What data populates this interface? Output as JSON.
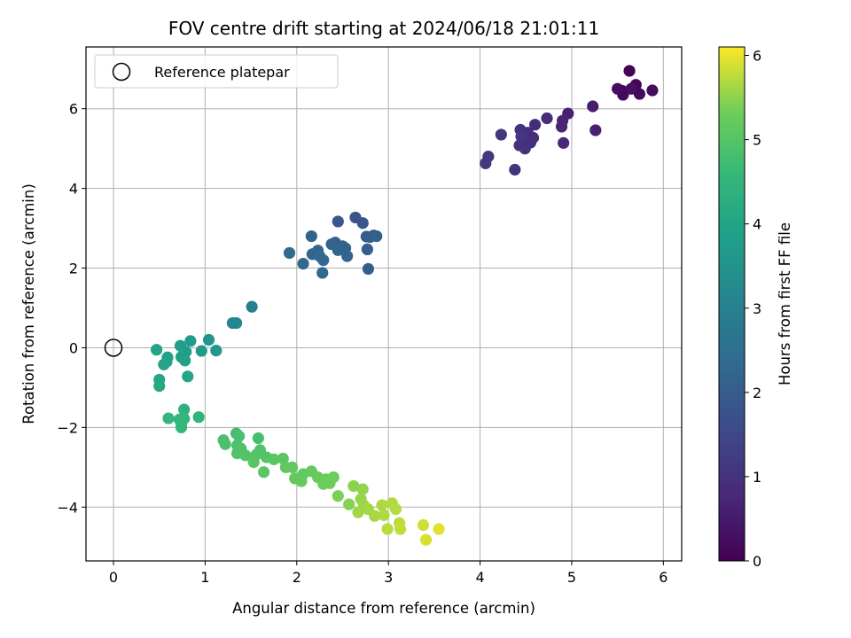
{
  "chart_data": {
    "type": "scatter",
    "title": "FOV centre drift starting at 2024/06/18 21:01:11",
    "xlabel": "Angular distance from reference (arcmin)",
    "ylabel": "Rotation from reference (arcmin)",
    "xlim": [
      -0.3,
      6.2
    ],
    "ylim": [
      -5.35,
      7.55
    ],
    "x_ticks": [
      0,
      1,
      2,
      3,
      4,
      5,
      6
    ],
    "y_ticks": [
      -4,
      -2,
      0,
      2,
      4,
      6
    ],
    "grid": true,
    "colormap": "viridis",
    "colorbar": {
      "label": "Hours from first FF file",
      "range": [
        0,
        6.1
      ],
      "ticks": [
        0,
        1,
        2,
        3,
        4,
        5,
        6
      ]
    },
    "legend": {
      "placement": "top-left",
      "entries": [
        "Reference platepar"
      ]
    },
    "reference_point": {
      "x": 0,
      "y": 0,
      "marker": "open-circle"
    },
    "series": [
      {
        "points": [
          {
            "x": 5.63,
            "y": 6.95,
            "h": 0.05
          },
          {
            "x": 5.7,
            "y": 6.6,
            "h": 0.1
          },
          {
            "x": 5.55,
            "y": 6.45,
            "h": 0.12
          },
          {
            "x": 5.56,
            "y": 6.35,
            "h": 0.15
          },
          {
            "x": 5.74,
            "y": 6.37,
            "h": 0.18
          },
          {
            "x": 5.88,
            "y": 6.46,
            "h": 0.22
          },
          {
            "x": 5.5,
            "y": 6.5,
            "h": 0.25
          },
          {
            "x": 5.65,
            "y": 6.5,
            "h": 0.3
          },
          {
            "x": 5.23,
            "y": 6.06,
            "h": 0.55
          },
          {
            "x": 5.26,
            "y": 5.46,
            "h": 0.6
          },
          {
            "x": 4.96,
            "y": 5.88,
            "h": 0.65
          },
          {
            "x": 4.9,
            "y": 5.7,
            "h": 0.7
          },
          {
            "x": 4.89,
            "y": 5.55,
            "h": 0.75
          },
          {
            "x": 4.91,
            "y": 5.14,
            "h": 0.8
          },
          {
            "x": 4.73,
            "y": 5.76,
            "h": 0.85
          },
          {
            "x": 4.6,
            "y": 5.6,
            "h": 0.88
          },
          {
            "x": 4.58,
            "y": 5.27,
            "h": 0.9
          },
          {
            "x": 4.52,
            "y": 5.4,
            "h": 0.92
          },
          {
            "x": 4.55,
            "y": 5.15,
            "h": 0.94
          },
          {
            "x": 4.48,
            "y": 5.2,
            "h": 0.96
          },
          {
            "x": 4.44,
            "y": 5.47,
            "h": 0.98
          },
          {
            "x": 4.43,
            "y": 5.08,
            "h": 1.0
          },
          {
            "x": 4.49,
            "y": 5.0,
            "h": 1.02
          },
          {
            "x": 4.38,
            "y": 4.47,
            "h": 1.05
          },
          {
            "x": 4.23,
            "y": 5.35,
            "h": 1.08
          },
          {
            "x": 4.09,
            "y": 4.8,
            "h": 1.1
          },
          {
            "x": 4.06,
            "y": 4.63,
            "h": 1.12
          },
          {
            "x": 4.45,
            "y": 5.3,
            "h": 1.14
          },
          {
            "x": 2.64,
            "y": 3.27,
            "h": 1.8
          },
          {
            "x": 2.72,
            "y": 3.13,
            "h": 1.85
          },
          {
            "x": 2.45,
            "y": 3.17,
            "h": 1.9
          },
          {
            "x": 2.84,
            "y": 2.82,
            "h": 1.95
          },
          {
            "x": 2.8,
            "y": 2.78,
            "h": 1.97
          },
          {
            "x": 2.76,
            "y": 2.79,
            "h": 2.0
          },
          {
            "x": 2.77,
            "y": 2.47,
            "h": 2.02
          },
          {
            "x": 2.78,
            "y": 1.98,
            "h": 2.05
          },
          {
            "x": 2.87,
            "y": 2.8,
            "h": 2.07
          },
          {
            "x": 2.42,
            "y": 2.64,
            "h": 2.1
          },
          {
            "x": 2.38,
            "y": 2.6,
            "h": 2.12
          },
          {
            "x": 2.5,
            "y": 2.55,
            "h": 2.14
          },
          {
            "x": 2.53,
            "y": 2.5,
            "h": 2.16
          },
          {
            "x": 2.45,
            "y": 2.45,
            "h": 2.18
          },
          {
            "x": 2.55,
            "y": 2.3,
            "h": 2.2
          },
          {
            "x": 2.16,
            "y": 2.8,
            "h": 2.22
          },
          {
            "x": 2.23,
            "y": 2.44,
            "h": 2.24
          },
          {
            "x": 2.17,
            "y": 2.35,
            "h": 2.26
          },
          {
            "x": 2.25,
            "y": 2.3,
            "h": 2.28
          },
          {
            "x": 2.29,
            "y": 2.2,
            "h": 2.3
          },
          {
            "x": 2.07,
            "y": 2.11,
            "h": 2.32
          },
          {
            "x": 2.28,
            "y": 1.88,
            "h": 2.35
          },
          {
            "x": 1.92,
            "y": 2.38,
            "h": 2.38
          },
          {
            "x": 1.51,
            "y": 1.03,
            "h": 3.0
          },
          {
            "x": 1.3,
            "y": 0.62,
            "h": 3.1
          },
          {
            "x": 1.34,
            "y": 0.62,
            "h": 3.15
          },
          {
            "x": 1.04,
            "y": 0.2,
            "h": 3.6
          },
          {
            "x": 1.12,
            "y": -0.07,
            "h": 3.65
          },
          {
            "x": 0.96,
            "y": -0.08,
            "h": 3.7
          },
          {
            "x": 0.84,
            "y": 0.17,
            "h": 3.75
          },
          {
            "x": 0.73,
            "y": 0.05,
            "h": 3.8
          },
          {
            "x": 0.79,
            "y": -0.1,
            "h": 3.85
          },
          {
            "x": 0.74,
            "y": -0.23,
            "h": 3.88
          },
          {
            "x": 0.78,
            "y": -0.32,
            "h": 3.9
          },
          {
            "x": 0.59,
            "y": -0.24,
            "h": 3.92
          },
          {
            "x": 0.58,
            "y": -0.35,
            "h": 3.95
          },
          {
            "x": 0.55,
            "y": -0.42,
            "h": 3.97
          },
          {
            "x": 0.47,
            "y": -0.05,
            "h": 4.0
          },
          {
            "x": 0.81,
            "y": -0.72,
            "h": 4.02
          },
          {
            "x": 0.5,
            "y": -0.8,
            "h": 4.05
          },
          {
            "x": 0.5,
            "y": -0.96,
            "h": 4.08
          },
          {
            "x": 0.77,
            "y": -1.55,
            "h": 4.4
          },
          {
            "x": 0.93,
            "y": -1.74,
            "h": 4.45
          },
          {
            "x": 0.6,
            "y": -1.77,
            "h": 4.5
          },
          {
            "x": 0.72,
            "y": -1.8,
            "h": 4.52
          },
          {
            "x": 0.77,
            "y": -1.78,
            "h": 4.54
          },
          {
            "x": 0.74,
            "y": -1.9,
            "h": 4.56
          },
          {
            "x": 0.74,
            "y": -2.0,
            "h": 4.58
          },
          {
            "x": 1.34,
            "y": -2.15,
            "h": 4.8
          },
          {
            "x": 1.58,
            "y": -2.27,
            "h": 4.82
          },
          {
            "x": 1.37,
            "y": -2.22,
            "h": 4.84
          },
          {
            "x": 1.2,
            "y": -2.32,
            "h": 4.86
          },
          {
            "x": 1.22,
            "y": -2.42,
            "h": 4.88
          },
          {
            "x": 1.35,
            "y": -2.45,
            "h": 4.9
          },
          {
            "x": 1.39,
            "y": -2.53,
            "h": 4.92
          },
          {
            "x": 1.6,
            "y": -2.57,
            "h": 4.94
          },
          {
            "x": 1.35,
            "y": -2.65,
            "h": 4.96
          },
          {
            "x": 1.44,
            "y": -2.7,
            "h": 4.98
          },
          {
            "x": 1.56,
            "y": -2.68,
            "h": 5.0
          },
          {
            "x": 1.67,
            "y": -2.75,
            "h": 5.02
          },
          {
            "x": 1.53,
            "y": -2.87,
            "h": 5.04
          },
          {
            "x": 1.75,
            "y": -2.8,
            "h": 5.06
          },
          {
            "x": 1.64,
            "y": -3.12,
            "h": 5.08
          },
          {
            "x": 1.85,
            "y": -2.78,
            "h": 5.1
          },
          {
            "x": 1.88,
            "y": -3.0,
            "h": 5.12
          },
          {
            "x": 1.95,
            "y": -3.0,
            "h": 5.14
          },
          {
            "x": 1.98,
            "y": -3.28,
            "h": 5.16
          },
          {
            "x": 2.07,
            "y": -3.17,
            "h": 5.18
          },
          {
            "x": 2.05,
            "y": -3.35,
            "h": 5.2
          },
          {
            "x": 2.16,
            "y": -3.1,
            "h": 5.22
          },
          {
            "x": 2.23,
            "y": -3.25,
            "h": 5.24
          },
          {
            "x": 2.32,
            "y": -3.3,
            "h": 5.26
          },
          {
            "x": 2.29,
            "y": -3.42,
            "h": 5.28
          },
          {
            "x": 2.4,
            "y": -3.25,
            "h": 5.3
          },
          {
            "x": 2.36,
            "y": -3.4,
            "h": 5.32
          },
          {
            "x": 2.45,
            "y": -3.72,
            "h": 5.4
          },
          {
            "x": 2.57,
            "y": -3.93,
            "h": 5.45
          },
          {
            "x": 2.62,
            "y": -3.47,
            "h": 5.5
          },
          {
            "x": 2.72,
            "y": -3.55,
            "h": 5.52
          },
          {
            "x": 2.7,
            "y": -3.8,
            "h": 5.55
          },
          {
            "x": 2.73,
            "y": -3.95,
            "h": 5.58
          },
          {
            "x": 2.67,
            "y": -4.13,
            "h": 5.6
          },
          {
            "x": 2.78,
            "y": -4.05,
            "h": 5.62
          },
          {
            "x": 2.85,
            "y": -4.22,
            "h": 5.64
          },
          {
            "x": 2.93,
            "y": -3.95,
            "h": 5.66
          },
          {
            "x": 2.95,
            "y": -4.2,
            "h": 5.68
          },
          {
            "x": 3.04,
            "y": -3.9,
            "h": 5.7
          },
          {
            "x": 3.08,
            "y": -4.05,
            "h": 5.72
          },
          {
            "x": 2.99,
            "y": -4.55,
            "h": 5.74
          },
          {
            "x": 3.12,
            "y": -4.4,
            "h": 5.76
          },
          {
            "x": 3.13,
            "y": -4.55,
            "h": 5.78
          },
          {
            "x": 3.38,
            "y": -4.45,
            "h": 5.85
          },
          {
            "x": 3.41,
            "y": -4.82,
            "h": 5.9
          },
          {
            "x": 3.55,
            "y": -4.55,
            "h": 5.95
          }
        ]
      }
    ]
  }
}
